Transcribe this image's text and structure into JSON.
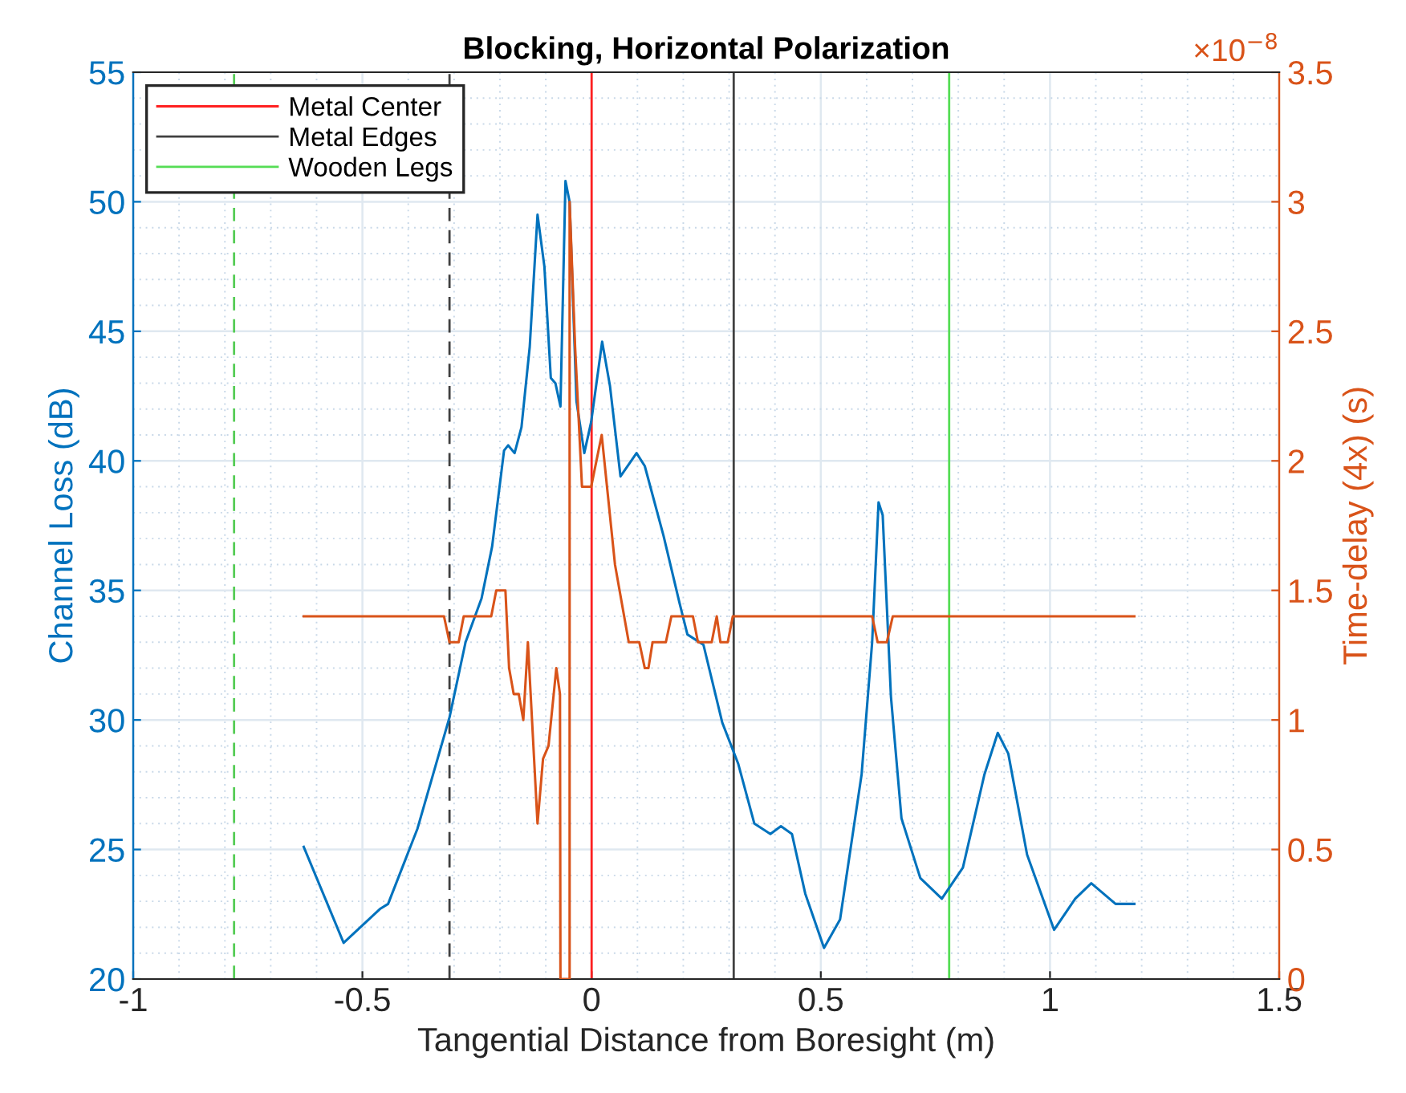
{
  "chart_data": {
    "type": "line",
    "title": "Blocking, Horizontal Polarization",
    "xlabel": "Tangential Distance from Boresight (m)",
    "ylabel": "Channel Loss (dB)",
    "y2label": "Time-delay (4x) (s)",
    "annotations": [
      "×10$^{−8}$"
    ],
    "xlim": [
      -1,
      1.5
    ],
    "xticks": [
      -1,
      -0.5,
      0,
      0.5,
      1,
      1.5
    ],
    "ylim": [
      20,
      55
    ],
    "yticks": [
      20,
      25,
      30,
      35,
      40,
      45,
      50,
      55
    ],
    "y2lim": [
      0,
      3.5
    ],
    "y2ticks": [
      0,
      0.5,
      1,
      1.5,
      2,
      2.5,
      3,
      3.5
    ],
    "grid": true,
    "legend": "top left",
    "series": [
      {
        "name": "Metal Center",
        "color": "#ff2020",
        "line_style": "solid",
        "x": [
          0,
          0
        ],
        "values": [
          20,
          55
        ]
      },
      {
        "color": "#404040",
        "line_style": "dashed",
        "x": [
          -0.31,
          -0.31
        ],
        "values": [
          20,
          55
        ]
      },
      {
        "name": "Metal Edges",
        "color": "#404040",
        "line_style": "solid",
        "x": [
          0.31,
          0.31
        ],
        "values": [
          20,
          55
        ]
      },
      {
        "color": "#55cc55",
        "line_style": "dashed",
        "x": [
          -0.78,
          -0.78
        ],
        "values": [
          20,
          55
        ]
      },
      {
        "name": "Wooden Legs",
        "color": "#55dd55",
        "line_style": "solid",
        "x": [
          0.78,
          0.78
        ],
        "values": [
          20,
          55
        ]
      },
      {
        "color": "#0072bd",
        "x": [
          -0.628,
          -0.541,
          -0.462,
          -0.444,
          -0.38,
          -0.31,
          -0.275,
          -0.24,
          -0.217,
          -0.191,
          -0.182,
          -0.168,
          -0.153,
          -0.135,
          -0.118,
          -0.103,
          -0.089,
          -0.079,
          -0.068,
          -0.057,
          -0.048,
          -0.033,
          -0.016,
          -0.001,
          0.023,
          0.04,
          0.063,
          0.098,
          0.116,
          0.157,
          0.192,
          0.209,
          0.244,
          0.285,
          0.32,
          0.355,
          0.39,
          0.413,
          0.437,
          0.466,
          0.507,
          0.542,
          0.589,
          0.612,
          0.626,
          0.635,
          0.653,
          0.676,
          0.717,
          0.764,
          0.81,
          0.857,
          0.886,
          0.909,
          0.95,
          1.009,
          1.055,
          1.09,
          1.143,
          1.184
        ],
        "values": [
          25.1,
          21.4,
          22.7,
          22.9,
          25.8,
          30.1,
          33.0,
          34.7,
          36.7,
          40.4,
          40.6,
          40.3,
          41.3,
          44.4,
          49.5,
          47.5,
          43.2,
          43.0,
          42.1,
          50.8,
          50.0,
          42.3,
          40.3,
          41.5,
          44.6,
          42.9,
          39.4,
          40.3,
          39.8,
          37.1,
          34.5,
          33.3,
          32.9,
          29.9,
          28.3,
          26.0,
          25.6,
          25.9,
          25.6,
          23.3,
          21.2,
          22.3,
          27.9,
          33.0,
          38.4,
          37.9,
          30.9,
          26.2,
          23.9,
          23.1,
          24.3,
          27.9,
          29.5,
          28.7,
          24.8,
          21.9,
          23.1,
          23.7,
          22.9,
          22.9
        ]
      },
      {
        "color": "#d95319",
        "axis": "y2",
        "x": [
          -0.628,
          -0.322,
          -0.31,
          -0.29,
          -0.279,
          -0.219,
          -0.208,
          -0.188,
          -0.18,
          -0.17,
          -0.159,
          -0.149,
          -0.139,
          -0.118,
          -0.106,
          -0.094,
          -0.077,
          -0.069,
          -0.068,
          -0.048,
          -0.048,
          -0.036,
          -0.021,
          -0.001,
          0.022,
          0.051,
          0.081,
          0.104,
          0.116,
          0.124,
          0.133,
          0.162,
          0.174,
          0.221,
          0.232,
          0.262,
          0.273,
          0.281,
          0.297,
          0.308,
          0.612,
          0.624,
          0.644,
          0.657,
          1.184
        ],
        "values": [
          1.4,
          1.4,
          1.3,
          1.3,
          1.4,
          1.4,
          1.5,
          1.5,
          1.2,
          1.1,
          1.1,
          1.0,
          1.3,
          0.6,
          0.85,
          0.9,
          1.2,
          1.1,
          0,
          0,
          3.0,
          2.44,
          1.9,
          1.9,
          2.1,
          1.6,
          1.3,
          1.3,
          1.2,
          1.2,
          1.3,
          1.3,
          1.4,
          1.4,
          1.3,
          1.3,
          1.4,
          1.3,
          1.3,
          1.4,
          1.4,
          1.3,
          1.3,
          1.4,
          1.4
        ]
      }
    ]
  }
}
